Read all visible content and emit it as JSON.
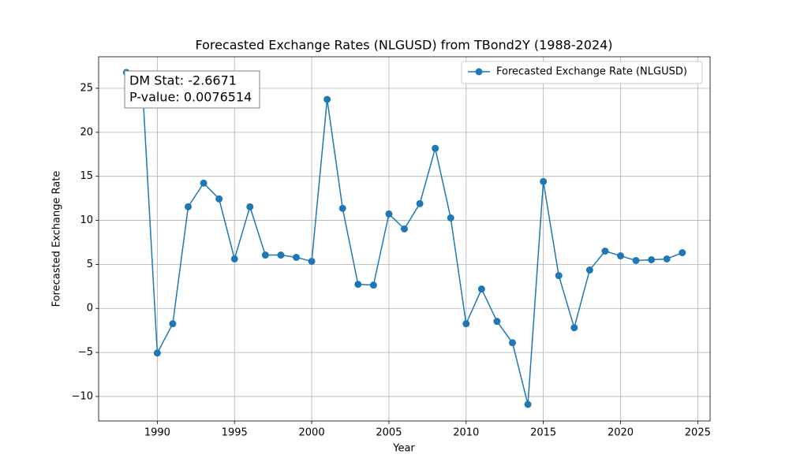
{
  "chart_data": {
    "type": "line",
    "title": "Forecasted Exchange Rates (NLGUSD) from TBond2Y (1988-2024)",
    "xlabel": "Year",
    "ylabel": "Forecasted Exchange Rate",
    "x": [
      1988,
      1989,
      1990,
      1991,
      1992,
      1993,
      1994,
      1995,
      1996,
      1997,
      1998,
      1999,
      2000,
      2001,
      2002,
      2003,
      2004,
      2005,
      2006,
      2007,
      2008,
      2009,
      2010,
      2011,
      2012,
      2013,
      2014,
      2015,
      2016,
      2017,
      2018,
      2019,
      2020,
      2021,
      2022,
      2023,
      2024
    ],
    "series": [
      {
        "name": "Forecasted Exchange Rate (NLGUSD)",
        "color": "#1f77b4",
        "values": [
          26.8,
          26.4,
          -5.06,
          -1.74,
          11.54,
          14.23,
          12.44,
          5.62,
          11.54,
          6.06,
          6.06,
          5.8,
          5.35,
          23.74,
          11.36,
          2.74,
          2.65,
          10.73,
          9.03,
          11.9,
          18.18,
          10.28,
          -1.74,
          2.2,
          -1.47,
          -3.9,
          -10.9,
          14.41,
          3.73,
          -2.19,
          4.36,
          6.51,
          5.97,
          5.44,
          5.53,
          5.62,
          6.33
        ]
      }
    ],
    "xlim": [
      1986.2,
      2025.8
    ],
    "ylim": [
      -12.78,
      28.58
    ],
    "xticks": [
      1990,
      1995,
      2000,
      2005,
      2010,
      2015,
      2020,
      2025
    ],
    "yticks": [
      {
        "value": -10,
        "label": "−10"
      },
      {
        "value": -5,
        "label": "−5"
      },
      0,
      5,
      10,
      15,
      20,
      25
    ],
    "grid": true,
    "legend": "upper right",
    "annotation": [
      "DM Stat: -2.6671",
      "P-value: 0.0076514"
    ]
  }
}
